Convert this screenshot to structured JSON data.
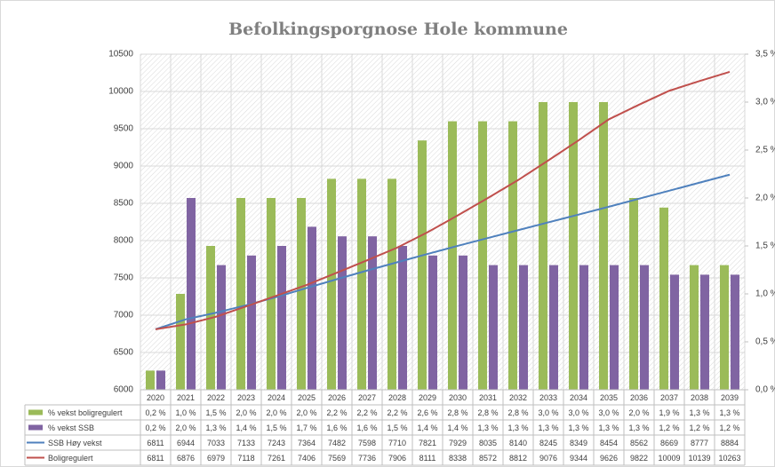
{
  "chart_data": {
    "type": "bar",
    "title": "Befolkingsporgnose Hole kommune",
    "categories": [
      "2020",
      "2021",
      "2022",
      "2023",
      "2024",
      "2025",
      "2026",
      "2027",
      "2028",
      "2029",
      "2030",
      "2031",
      "2032",
      "2033",
      "2034",
      "2035",
      "2036",
      "2037",
      "2038",
      "2039"
    ],
    "series": [
      {
        "name": "% vekst boligregulert",
        "type": "bar",
        "axis": "y2",
        "color": "#9bbb59",
        "values": [
          0.2,
          1.0,
          1.5,
          2.0,
          2.0,
          2.0,
          2.2,
          2.2,
          2.2,
          2.6,
          2.8,
          2.8,
          2.8,
          3.0,
          3.0,
          3.0,
          2.0,
          1.9,
          1.3,
          1.3
        ],
        "value_labels": [
          "0,2 %",
          "1,0 %",
          "1,5 %",
          "2,0 %",
          "2,0 %",
          "2,0 %",
          "2,2 %",
          "2,2 %",
          "2,2 %",
          "2,6 %",
          "2,8 %",
          "2,8 %",
          "2,8 %",
          "3,0 %",
          "3,0 %",
          "3,0 %",
          "2,0 %",
          "1,9 %",
          "1,3 %",
          "1,3 %"
        ]
      },
      {
        "name": "% vekst SSB",
        "type": "bar",
        "axis": "y2",
        "color": "#8064a2",
        "values": [
          0.2,
          2.0,
          1.3,
          1.4,
          1.5,
          1.7,
          1.6,
          1.6,
          1.5,
          1.4,
          1.4,
          1.3,
          1.3,
          1.3,
          1.3,
          1.3,
          1.3,
          1.2,
          1.2,
          1.2
        ],
        "value_labels": [
          "0,2 %",
          "2,0 %",
          "1,3 %",
          "1,4 %",
          "1,5 %",
          "1,7 %",
          "1,6 %",
          "1,6 %",
          "1,5 %",
          "1,4 %",
          "1,4 %",
          "1,3 %",
          "1,3 %",
          "1,3 %",
          "1,3 %",
          "1,3 %",
          "1,3 %",
          "1,2 %",
          "1,2 %",
          "1,2 %"
        ]
      },
      {
        "name": "SSB Høy vekst",
        "type": "line",
        "color": "#4f81bd",
        "values": [
          6811,
          6944,
          7033,
          7133,
          7243,
          7364,
          7482,
          7598,
          7710,
          7821,
          7929,
          8035,
          8140,
          8245,
          8349,
          8454,
          8562,
          8669,
          8777,
          8884
        ]
      },
      {
        "name": "Boligregulert",
        "type": "line",
        "color": "#c0504d",
        "values": [
          6811,
          6876,
          6979,
          7118,
          7261,
          7406,
          7569,
          7736,
          7906,
          8111,
          8338,
          8572,
          8812,
          9076,
          9344,
          9626,
          9822,
          10009,
          10139,
          10263
        ]
      }
    ],
    "ylim": [
      6000,
      10500
    ],
    "yticks": [
      6000,
      6500,
      7000,
      7500,
      8000,
      8500,
      9000,
      9500,
      10000,
      10500
    ],
    "y2lim": [
      0,
      3.5
    ],
    "y2ticks": [
      {
        "value": 0,
        "label": "0,0 %"
      },
      {
        "value": 0.5,
        "label": "0,5 %"
      },
      {
        "value": 1,
        "label": "1,0 %"
      },
      {
        "value": 1.5,
        "label": "1,5 %"
      },
      {
        "value": 2,
        "label": "2,0 %"
      },
      {
        "value": 2.5,
        "label": "2,5 %"
      },
      {
        "value": 3,
        "label": "3,0 %"
      },
      {
        "value": 3.5,
        "label": "3,5 %"
      }
    ],
    "grid": true,
    "data_table": true
  }
}
